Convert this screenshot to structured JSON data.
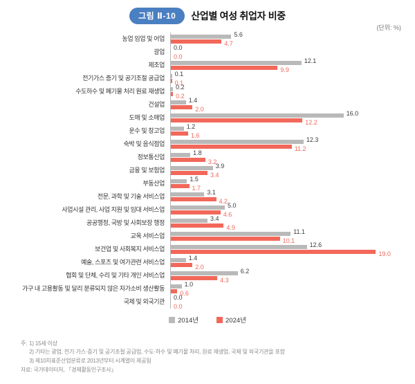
{
  "header": {
    "badge": "그림 Ⅱ-10",
    "title": "산업별 여성 취업자 비중",
    "unit": "(단위: %)"
  },
  "chart_data": {
    "type": "bar",
    "orientation": "horizontal",
    "title": "산업별 여성 취업자 비중",
    "unit": "%",
    "xlim": [
      0,
      19.5
    ],
    "grid": false,
    "legend_position": "bottom",
    "value_labels": true,
    "categories": [
      "농업 임업 및 어업",
      "광업",
      "제조업",
      "전기가스 증기 및 공기조절 공급업",
      "수도하수 및 폐기물 처리 원료 재생업",
      "건설업",
      "도매 및 소매업",
      "운수 및 창고업",
      "숙박 및 음식점업",
      "정보통신업",
      "금융 및 보험업",
      "부동산업",
      "전문, 과학 및 기술 서비스업",
      "사업시설 관리, 사업 지원 및 임대 서비스업",
      "공공행정, 국방 및 사회보장 행정",
      "교육 서비스업",
      "보건업 및 사회복지 서비스업",
      "예술, 스포츠 및 여가관련 서비스업",
      "협회 및 단체, 수리 및 기타 개인 서비스업",
      "가구 내 고용활동 및 달리 분류되지 않은 자가소비 생산활동",
      "국제 및 외국기관"
    ],
    "series": [
      {
        "name": "2014년",
        "color": "#b9b9b9",
        "values": [
          5.6,
          0.0,
          12.1,
          0.1,
          0.2,
          1.4,
          16.0,
          1.2,
          12.3,
          1.8,
          3.9,
          1.5,
          3.1,
          5.0,
          3.4,
          11.1,
          12.6,
          1.4,
          6.2,
          1.0,
          0.0
        ]
      },
      {
        "name": "2024년",
        "color": "#f2685a",
        "values": [
          4.7,
          0.0,
          9.9,
          0.1,
          0.2,
          2.0,
          12.2,
          1.6,
          11.2,
          3.2,
          3.4,
          1.7,
          4.2,
          4.6,
          4.9,
          10.1,
          19.0,
          2.0,
          4.3,
          0.6,
          0.0
        ]
      }
    ]
  },
  "footnotes": {
    "note_prefix": "주:",
    "notes": [
      "1) 15세 이상",
      "2) 기타는 광업, 전기·가스·증기 및 공기조절 공급업, 수도·하수 및 폐기물 처리, 원료 재생업, 국제 및 외국기관을 포함",
      "3) 제10차표준산업분류로 2013년부터 시계열이 제공됨"
    ],
    "source": "자료: 국가데이터처, 「경제활동인구조사」"
  },
  "colors": {
    "badge_bg": "#4a7fc1",
    "bar_2014": "#b9b9b9",
    "bar_2024": "#f2685a",
    "axis": "#b5b5b5"
  }
}
